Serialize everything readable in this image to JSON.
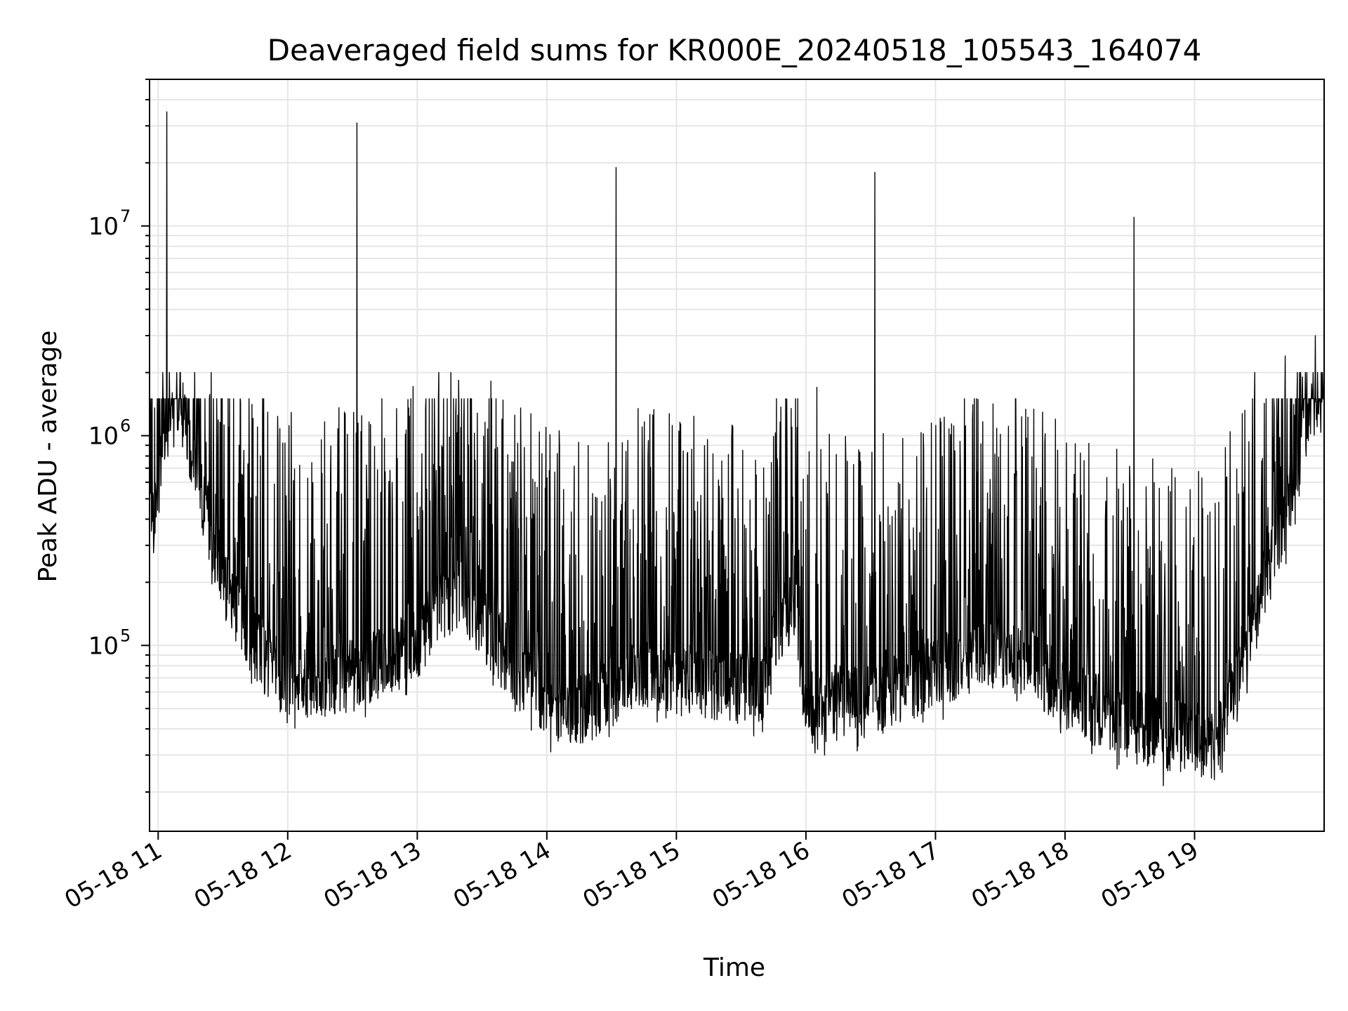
{
  "colors": {
    "background": "#ffffff",
    "line": "#000000",
    "grid": "#e6e6e6",
    "axes": "#000000"
  },
  "chart_data": {
    "type": "line",
    "title": "Deaveraged field sums for KR000E_20240518_105543_164074",
    "xlabel": "Time",
    "ylabel": "Peak ADU - average",
    "yscale": "log",
    "grid": true,
    "legend": "none",
    "xlim": [
      "2024-05-18 10:56",
      "2024-05-18 20:00"
    ],
    "ylim": [
      13000,
      50000000
    ],
    "x_ticks": [
      {
        "t": "2024-05-18 11:00",
        "label": "05-18 11"
      },
      {
        "t": "2024-05-18 12:00",
        "label": "05-18 12"
      },
      {
        "t": "2024-05-18 13:00",
        "label": "05-18 13"
      },
      {
        "t": "2024-05-18 14:00",
        "label": "05-18 14"
      },
      {
        "t": "2024-05-18 15:00",
        "label": "05-18 15"
      },
      {
        "t": "2024-05-18 16:00",
        "label": "05-18 16"
      },
      {
        "t": "2024-05-18 17:00",
        "label": "05-18 17"
      },
      {
        "t": "2024-05-18 18:00",
        "label": "05-18 18"
      },
      {
        "t": "2024-05-18 19:00",
        "label": "05-18 19"
      }
    ],
    "y_ticks": [
      {
        "value": 100000,
        "base": "10",
        "exp": "5"
      },
      {
        "value": 1000000,
        "base": "10",
        "exp": "6"
      },
      {
        "value": 10000000,
        "base": "10",
        "exp": "7"
      }
    ],
    "series": [
      {
        "points": [
          [
            "2024-05-18 10:56",
            450000
          ],
          [
            "2024-05-18 10:58",
            380000
          ],
          [
            "2024-05-18 11:00",
            600000
          ],
          [
            "2024-05-18 11:04",
            1100000
          ],
          [
            "2024-05-18 11:08",
            1700000
          ],
          [
            "2024-05-18 11:12",
            1200000
          ],
          [
            "2024-05-18 11:16",
            800000
          ],
          [
            "2024-05-18 11:20",
            500000
          ],
          [
            "2024-05-18 11:25",
            330000
          ],
          [
            "2024-05-18 11:30",
            200000
          ],
          [
            "2024-05-18 11:38",
            140000
          ],
          [
            "2024-05-18 11:45",
            100000
          ],
          [
            "2024-05-18 11:52",
            80000
          ],
          [
            "2024-05-18 12:00",
            70000
          ],
          [
            "2024-05-18 12:15",
            68000
          ],
          [
            "2024-05-18 12:30",
            72000
          ],
          [
            "2024-05-18 12:45",
            85000
          ],
          [
            "2024-05-18 13:00",
            100000
          ],
          [
            "2024-05-18 13:10",
            150000
          ],
          [
            "2024-05-18 13:20",
            180000
          ],
          [
            "2024-05-18 13:30",
            130000
          ],
          [
            "2024-05-18 13:45",
            75000
          ],
          [
            "2024-05-18 14:00",
            55000
          ],
          [
            "2024-05-18 14:15",
            50000
          ],
          [
            "2024-05-18 14:30",
            60000
          ],
          [
            "2024-05-18 14:45",
            75000
          ],
          [
            "2024-05-18 15:00",
            70000
          ],
          [
            "2024-05-18 15:15",
            65000
          ],
          [
            "2024-05-18 15:30",
            62000
          ],
          [
            "2024-05-18 15:40",
            60000
          ],
          [
            "2024-05-18 15:48",
            130000
          ],
          [
            "2024-05-18 15:55",
            150000
          ],
          [
            "2024-05-18 16:00",
            50000
          ],
          [
            "2024-05-18 16:15",
            55000
          ],
          [
            "2024-05-18 16:30",
            55000
          ],
          [
            "2024-05-18 16:45",
            65000
          ],
          [
            "2024-05-18 17:00",
            75000
          ],
          [
            "2024-05-18 17:15",
            85000
          ],
          [
            "2024-05-18 17:30",
            95000
          ],
          [
            "2024-05-18 17:45",
            80000
          ],
          [
            "2024-05-18 18:00",
            60000
          ],
          [
            "2024-05-18 18:15",
            50000
          ],
          [
            "2024-05-18 18:30",
            42000
          ],
          [
            "2024-05-18 18:45",
            38000
          ],
          [
            "2024-05-18 19:00",
            36000
          ],
          [
            "2024-05-18 19:10",
            33000
          ],
          [
            "2024-05-18 19:18",
            60000
          ],
          [
            "2024-05-18 19:25",
            110000
          ],
          [
            "2024-05-18 19:32",
            200000
          ],
          [
            "2024-05-18 19:40",
            330000
          ],
          [
            "2024-05-18 19:45",
            550000
          ],
          [
            "2024-05-18 19:50",
            1000000
          ],
          [
            "2024-05-18 19:55",
            1400000
          ],
          [
            "2024-05-18 20:00",
            1600000
          ]
        ],
        "spikes": [
          [
            "2024-05-18 11:04",
            35000000
          ],
          [
            "2024-05-18 12:32",
            31000000
          ],
          [
            "2024-05-18 14:32",
            19000000
          ],
          [
            "2024-05-18 16:32",
            18000000
          ],
          [
            "2024-05-18 16:05",
            1700000
          ],
          [
            "2024-05-18 18:32",
            11000000
          ],
          [
            "2024-05-18 19:42",
            2400000
          ],
          [
            "2024-05-18 19:56",
            3000000
          ]
        ]
      }
    ]
  }
}
